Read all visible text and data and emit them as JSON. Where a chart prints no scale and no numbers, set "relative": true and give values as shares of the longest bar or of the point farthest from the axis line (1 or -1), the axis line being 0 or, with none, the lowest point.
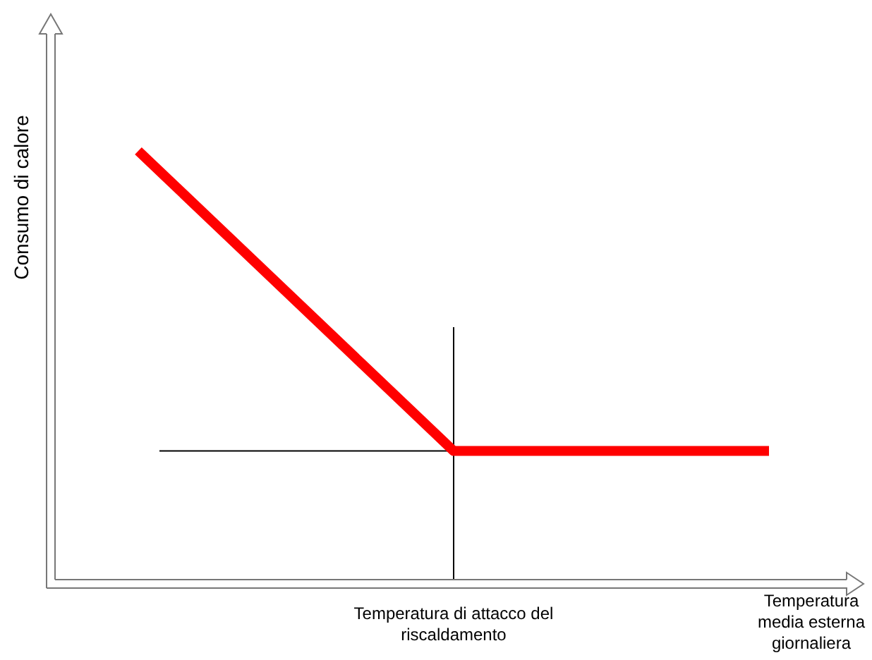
{
  "chart_data": {
    "type": "line",
    "relative": true,
    "xlabel": "Temperatura media esterna giornaliera",
    "ylabel": "Consumo di calore",
    "categories": [
      null,
      null,
      null
    ],
    "series": [
      {
        "color": "#ff0000",
        "values": [
          1,
          0.3,
          0.3
        ]
      }
    ],
    "ref_lines": [
      {
        "axis": "y",
        "value": 0.3,
        "color": "#000000"
      }
    ],
    "annotations": [
      "Temperatura di attacco del riscaldamento"
    ],
    "marker": "none",
    "line_style": "solid"
  }
}
